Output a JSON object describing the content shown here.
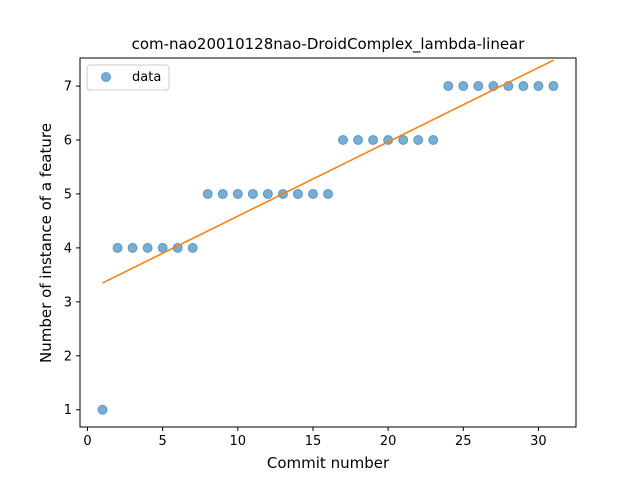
{
  "chart_data": {
    "type": "scatter",
    "title": "com-nao20010128nao-DroidComplex_lambda-linear",
    "xlabel": "Commit number",
    "ylabel": "Number of instance of a feature",
    "xlim": [
      -0.5,
      32.5
    ],
    "ylim": [
      0.68,
      7.52
    ],
    "xticks": [
      0,
      5,
      10,
      15,
      20,
      25,
      30
    ],
    "yticks": [
      1,
      2,
      3,
      4,
      5,
      6,
      7
    ],
    "grid": false,
    "legend": {
      "position": "top-left",
      "entries": [
        "data"
      ]
    },
    "series": [
      {
        "name": "data",
        "kind": "scatter",
        "color": "#1f77b4",
        "x": [
          1,
          2,
          3,
          4,
          5,
          6,
          7,
          8,
          9,
          10,
          11,
          12,
          13,
          14,
          15,
          16,
          17,
          18,
          19,
          20,
          21,
          22,
          23,
          24,
          25,
          26,
          27,
          28,
          29,
          30,
          31
        ],
        "y": [
          1,
          4,
          4,
          4,
          4,
          4,
          4,
          5,
          5,
          5,
          5,
          5,
          5,
          5,
          5,
          5,
          6,
          6,
          6,
          6,
          6,
          6,
          6,
          7,
          7,
          7,
          7,
          7,
          7,
          7,
          7
        ]
      },
      {
        "kind": "line",
        "color": "#ff7f0e",
        "x": [
          1,
          31
        ],
        "y": [
          3.35,
          7.48
        ]
      }
    ]
  }
}
